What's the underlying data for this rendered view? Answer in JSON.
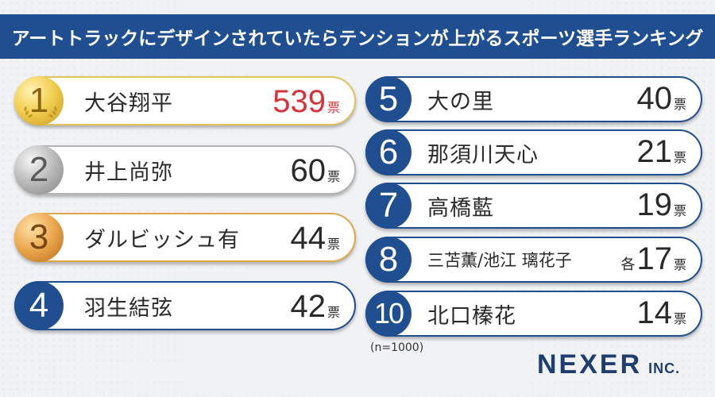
{
  "title": "アートトラックにデザインされていたらテンションが上がるスポーツ選手ランキング",
  "note": "(n=1000)",
  "logo": {
    "main": "NEXER",
    "sub": "INC."
  },
  "colors": {
    "navy": "#1f4f91",
    "red": "#d6333a",
    "gold": "#e0c15a",
    "silver": "#b4b4b4",
    "bronze": "#e0a64a"
  },
  "left": [
    {
      "rank": "1",
      "name": "大谷翔平",
      "votes": "539",
      "unit": "票",
      "style": "gold"
    },
    {
      "rank": "2",
      "name": "井上尚弥",
      "votes": "60",
      "unit": "票",
      "style": "silver"
    },
    {
      "rank": "3",
      "name": "ダルビッシュ有",
      "votes": "44",
      "unit": "票",
      "style": "bronze"
    },
    {
      "rank": "4",
      "name": "羽生結弦",
      "votes": "42",
      "unit": "票",
      "style": "navy"
    }
  ],
  "right": [
    {
      "rank": "5",
      "name": "大の里",
      "votes": "40",
      "unit": "票"
    },
    {
      "rank": "6",
      "name": "那須川天心",
      "votes": "21",
      "unit": "票"
    },
    {
      "rank": "7",
      "name": "高橋藍",
      "votes": "19",
      "unit": "票"
    },
    {
      "rank": "8",
      "name": "三苫薫/池江 璃花子",
      "prefix": "各",
      "votes": "17",
      "unit": "票"
    },
    {
      "rank": "10",
      "name": "北口榛花",
      "votes": "14",
      "unit": "票"
    }
  ]
}
